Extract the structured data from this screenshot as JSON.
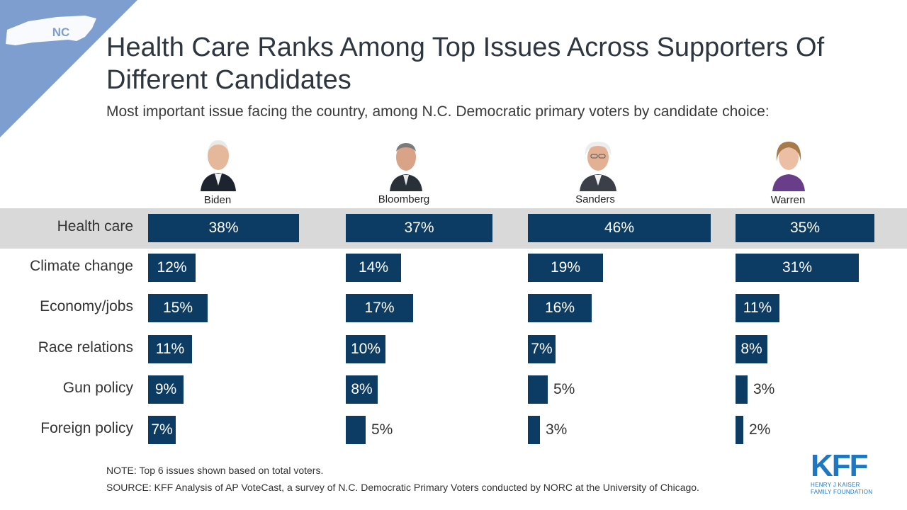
{
  "badge": {
    "state_abbr": "NC",
    "triangle_color": "#7f9ed0"
  },
  "title": "Health Care Ranks Among Top Issues Across Supporters Of Different Candidates",
  "subtitle": "Most important issue facing the country, among N.C. Democratic primary voters by candidate choice:",
  "bar_color": "#0c3b63",
  "highlight_color": "#d9d9d9",
  "chart_data": {
    "type": "bar",
    "orientation": "horizontal",
    "categories": [
      "Health care",
      "Climate change",
      "Economy/jobs",
      "Race relations",
      "Gun policy",
      "Foreign policy"
    ],
    "series": [
      {
        "name": "Biden",
        "values": [
          38,
          12,
          15,
          11,
          9,
          7
        ],
        "labels": [
          "38%",
          "12%",
          "15%",
          "11%",
          "9%",
          "7%"
        ]
      },
      {
        "name": "Bloomberg",
        "values": [
          37,
          14,
          17,
          10,
          8,
          5
        ],
        "labels": [
          "37%",
          "14%",
          "17%",
          "10%",
          "8%",
          "5%"
        ]
      },
      {
        "name": "Sanders",
        "values": [
          46,
          19,
          16,
          7,
          5,
          3
        ],
        "labels": [
          "46%",
          "19%",
          "16%",
          "7%",
          "5%",
          "3%"
        ]
      },
      {
        "name": "Warren",
        "values": [
          35,
          31,
          11,
          8,
          3,
          2
        ],
        "labels": [
          "35%",
          "31%",
          "11%",
          "8%",
          "3%",
          "2%"
        ]
      }
    ],
    "highlighted_category": "Health care",
    "grid": false,
    "legend": "none"
  },
  "footer": {
    "note": "NOTE: Top 6 issues shown based on total voters.",
    "source": "SOURCE: KFF Analysis of AP VoteCast, a survey of N.C. Democratic Primary Voters conducted by NORC at the University of Chicago."
  },
  "logo": {
    "mark": "KFF",
    "line1": "HENRY J KAISER",
    "line2": "FAMILY FOUNDATION"
  }
}
